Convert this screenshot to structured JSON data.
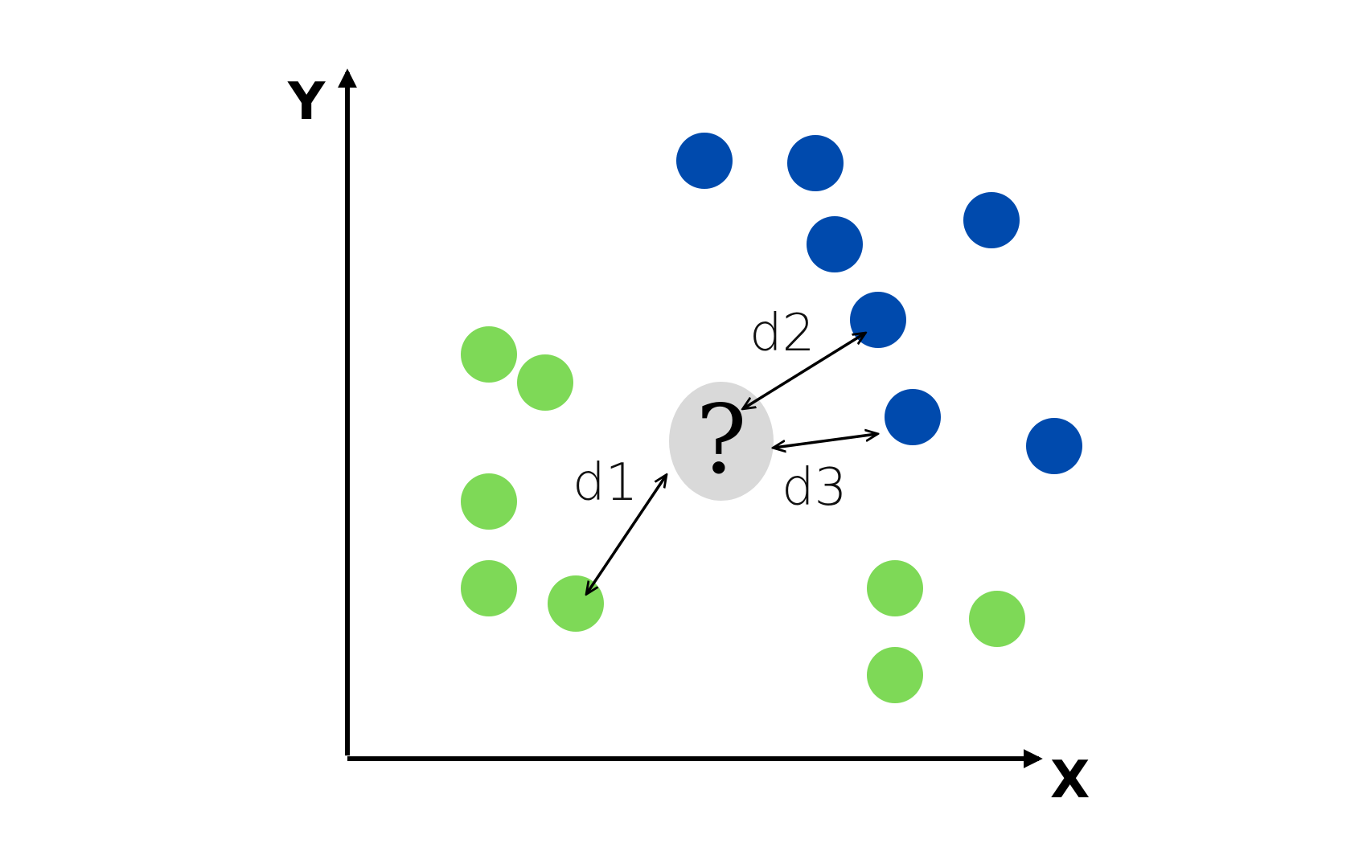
{
  "axes": {
    "x_label": "X",
    "y_label": "Y"
  },
  "query_point": {
    "glyph": "?",
    "color": "#d9d9d9"
  },
  "distances": [
    {
      "label": "d1"
    },
    {
      "label": "d2"
    },
    {
      "label": "d3"
    }
  ],
  "colors": {
    "class_green": "#7ed957",
    "class_blue": "#004aad",
    "axis": "#000000"
  }
}
